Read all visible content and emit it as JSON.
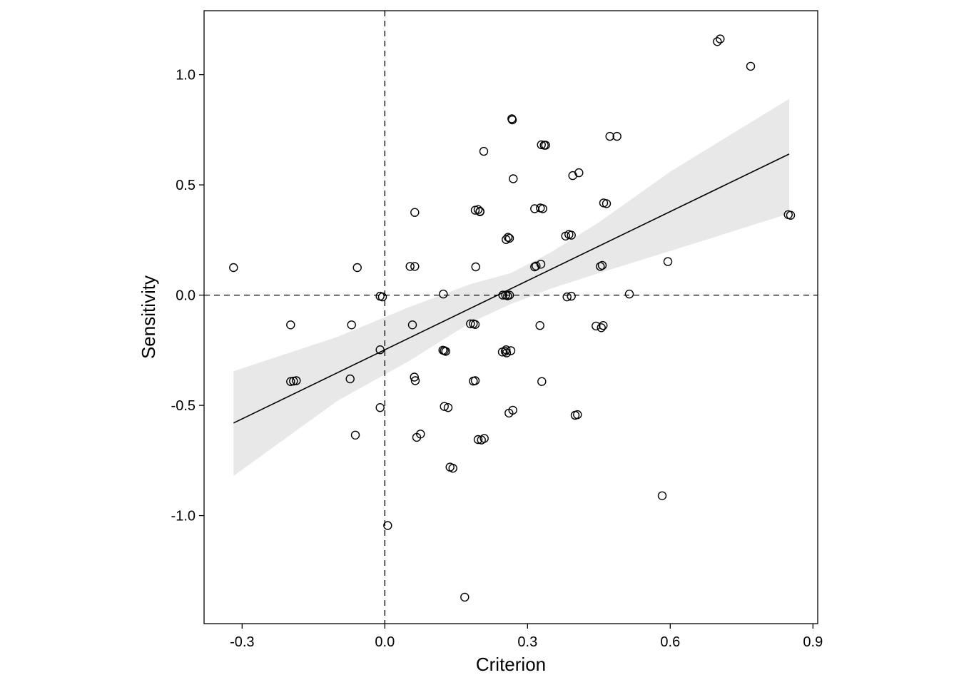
{
  "chart_data": {
    "type": "scatter",
    "xlabel": "Criterion",
    "ylabel": "Sensitivity",
    "xlim": [
      -0.38,
      0.91
    ],
    "ylim": [
      -1.49,
      1.29
    ],
    "xticks": [
      -0.3,
      0.0,
      0.3,
      0.6,
      0.9
    ],
    "xtick_labels": [
      "-0.3",
      "0.0",
      "0.3",
      "0.6",
      "0.9"
    ],
    "yticks": [
      -1.0,
      -0.5,
      0.0,
      0.5,
      1.0
    ],
    "ytick_labels": [
      "-1.0",
      "-0.5",
      "0.0",
      "0.5",
      "1.0"
    ],
    "grid": false,
    "reference_lines": {
      "x": 0.0,
      "y": 0.0,
      "style": "dashed"
    },
    "colors": {
      "points": "#000000",
      "fit_line": "#000000",
      "band": "#e8e8e8"
    },
    "fit": {
      "x": [
        -0.318,
        0.85
      ],
      "y": [
        -0.58,
        0.64
      ],
      "band": [
        {
          "x": -0.318,
          "lower": -0.82,
          "upper": -0.345
        },
        {
          "x": -0.1,
          "lower": -0.48,
          "upper": -0.19
        },
        {
          "x": 0.05,
          "lower": -0.3,
          "upper": -0.055
        },
        {
          "x": 0.18,
          "lower": -0.125,
          "upper": 0.05
        },
        {
          "x": 0.265,
          "lower": -0.04,
          "upper": 0.1
        },
        {
          "x": 0.35,
          "lower": 0.03,
          "upper": 0.195
        },
        {
          "x": 0.45,
          "lower": 0.1,
          "upper": 0.33
        },
        {
          "x": 0.6,
          "lower": 0.2,
          "upper": 0.56
        },
        {
          "x": 0.85,
          "lower": 0.37,
          "upper": 0.89
        }
      ]
    },
    "points": [
      {
        "x": -0.318,
        "y": 0.125
      },
      {
        "x": -0.198,
        "y": -0.135
      },
      {
        "x": -0.198,
        "y": -0.392
      },
      {
        "x": -0.192,
        "y": -0.39
      },
      {
        "x": -0.186,
        "y": -0.388
      },
      {
        "x": -0.07,
        "y": -0.135
      },
      {
        "x": -0.073,
        "y": -0.38
      },
      {
        "x": -0.062,
        "y": -0.635
      },
      {
        "x": -0.058,
        "y": 0.125
      },
      {
        "x": -0.01,
        "y": -0.005
      },
      {
        "x": -0.005,
        "y": -0.008
      },
      {
        "x": -0.01,
        "y": -0.248
      },
      {
        "x": -0.01,
        "y": -0.51
      },
      {
        "x": 0.006,
        "y": -1.045
      },
      {
        "x": 0.053,
        "y": 0.13
      },
      {
        "x": 0.063,
        "y": 0.13
      },
      {
        "x": 0.063,
        "y": 0.375
      },
      {
        "x": 0.058,
        "y": -0.135
      },
      {
        "x": 0.062,
        "y": -0.372
      },
      {
        "x": 0.064,
        "y": -0.388
      },
      {
        "x": 0.067,
        "y": -0.645
      },
      {
        "x": 0.075,
        "y": -0.63
      },
      {
        "x": 0.123,
        "y": 0.005
      },
      {
        "x": 0.122,
        "y": -0.25
      },
      {
        "x": 0.125,
        "y": -0.252
      },
      {
        "x": 0.128,
        "y": -0.255
      },
      {
        "x": 0.125,
        "y": -0.505
      },
      {
        "x": 0.133,
        "y": -0.51
      },
      {
        "x": 0.137,
        "y": -0.78
      },
      {
        "x": 0.143,
        "y": -0.785
      },
      {
        "x": 0.168,
        "y": -1.37
      },
      {
        "x": 0.18,
        "y": -0.13
      },
      {
        "x": 0.186,
        "y": -0.13
      },
      {
        "x": 0.19,
        "y": -0.133
      },
      {
        "x": 0.186,
        "y": -0.39
      },
      {
        "x": 0.19,
        "y": -0.388
      },
      {
        "x": 0.19,
        "y": 0.385
      },
      {
        "x": 0.196,
        "y": 0.388
      },
      {
        "x": 0.2,
        "y": 0.378
      },
      {
        "x": 0.191,
        "y": 0.128
      },
      {
        "x": 0.196,
        "y": -0.655
      },
      {
        "x": 0.203,
        "y": -0.657
      },
      {
        "x": 0.209,
        "y": -0.65
      },
      {
        "x": 0.2,
        "y": 0.38
      },
      {
        "x": 0.208,
        "y": 0.652
      },
      {
        "x": 0.248,
        "y": 0.0
      },
      {
        "x": 0.254,
        "y": 0.0
      },
      {
        "x": 0.258,
        "y": -0.003
      },
      {
        "x": 0.262,
        "y": 0.0
      },
      {
        "x": 0.247,
        "y": -0.258
      },
      {
        "x": 0.253,
        "y": -0.255
      },
      {
        "x": 0.256,
        "y": -0.262
      },
      {
        "x": 0.265,
        "y": -0.252
      },
      {
        "x": 0.255,
        "y": -0.248
      },
      {
        "x": 0.255,
        "y": 0.252
      },
      {
        "x": 0.259,
        "y": 0.262
      },
      {
        "x": 0.262,
        "y": 0.258
      },
      {
        "x": 0.261,
        "y": -0.535
      },
      {
        "x": 0.269,
        "y": -0.522
      },
      {
        "x": 0.267,
        "y": 0.8
      },
      {
        "x": 0.268,
        "y": 0.795
      },
      {
        "x": 0.27,
        "y": 0.528
      },
      {
        "x": 0.315,
        "y": 0.392
      },
      {
        "x": 0.327,
        "y": 0.395
      },
      {
        "x": 0.332,
        "y": 0.392
      },
      {
        "x": 0.315,
        "y": 0.128
      },
      {
        "x": 0.318,
        "y": 0.132
      },
      {
        "x": 0.328,
        "y": 0.14
      },
      {
        "x": 0.326,
        "y": -0.138
      },
      {
        "x": 0.33,
        "y": -0.392
      },
      {
        "x": 0.329,
        "y": 0.682
      },
      {
        "x": 0.335,
        "y": 0.68
      },
      {
        "x": 0.338,
        "y": 0.68
      },
      {
        "x": 0.38,
        "y": 0.268
      },
      {
        "x": 0.387,
        "y": 0.275
      },
      {
        "x": 0.392,
        "y": 0.272
      },
      {
        "x": 0.383,
        "y": -0.008
      },
      {
        "x": 0.392,
        "y": -0.005
      },
      {
        "x": 0.395,
        "y": 0.542
      },
      {
        "x": 0.408,
        "y": 0.555
      },
      {
        "x": 0.4,
        "y": -0.545
      },
      {
        "x": 0.405,
        "y": -0.542
      },
      {
        "x": 0.444,
        "y": -0.14
      },
      {
        "x": 0.455,
        "y": -0.148
      },
      {
        "x": 0.459,
        "y": -0.138
      },
      {
        "x": 0.453,
        "y": 0.13
      },
      {
        "x": 0.457,
        "y": 0.135
      },
      {
        "x": 0.46,
        "y": 0.418
      },
      {
        "x": 0.466,
        "y": 0.415
      },
      {
        "x": 0.473,
        "y": 0.72
      },
      {
        "x": 0.488,
        "y": 0.72
      },
      {
        "x": 0.514,
        "y": 0.005
      },
      {
        "x": 0.583,
        "y": -0.91
      },
      {
        "x": 0.595,
        "y": 0.152
      },
      {
        "x": 0.699,
        "y": 1.15
      },
      {
        "x": 0.705,
        "y": 1.162
      },
      {
        "x": 0.769,
        "y": 1.038
      },
      {
        "x": 0.848,
        "y": 0.365
      },
      {
        "x": 0.853,
        "y": 0.362
      }
    ]
  }
}
